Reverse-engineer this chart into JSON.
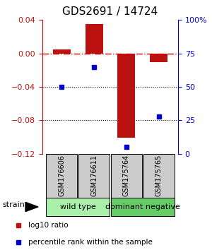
{
  "title": "GDS2691 / 14724",
  "samples": [
    "GSM176606",
    "GSM176611",
    "GSM175764",
    "GSM175765"
  ],
  "log10_ratio": [
    0.005,
    0.035,
    -0.101,
    -0.01
  ],
  "percentile_rank": [
    50,
    65,
    5,
    28
  ],
  "bar_color": "#bb1111",
  "dot_color": "#0000cc",
  "ylim_left": [
    -0.12,
    0.04
  ],
  "ylim_right": [
    0,
    100
  ],
  "yticks_left": [
    -0.12,
    -0.08,
    -0.04,
    0,
    0.04
  ],
  "yticks_right": [
    0,
    25,
    50,
    75,
    100
  ],
  "ytick_labels_right": [
    "0",
    "25",
    "50",
    "75",
    "100%"
  ],
  "groups": [
    {
      "label": "wild type",
      "samples": [
        0,
        1
      ],
      "color": "#aaf0aa"
    },
    {
      "label": "dominant negative",
      "samples": [
        2,
        3
      ],
      "color": "#66cc66"
    }
  ],
  "hline_color": "#cc0000",
  "hline_style": "-.",
  "dotted_lines": [
    -0.04,
    -0.08
  ],
  "dotted_color": "black",
  "bar_width": 0.55,
  "legend_red_label": "log10 ratio",
  "legend_blue_label": "percentile rank within the sample",
  "strain_label": "strain",
  "title_fontsize": 11,
  "tick_fontsize": 8,
  "legend_fontsize": 7.5,
  "sample_fontsize": 7,
  "group_fontsize": 8
}
